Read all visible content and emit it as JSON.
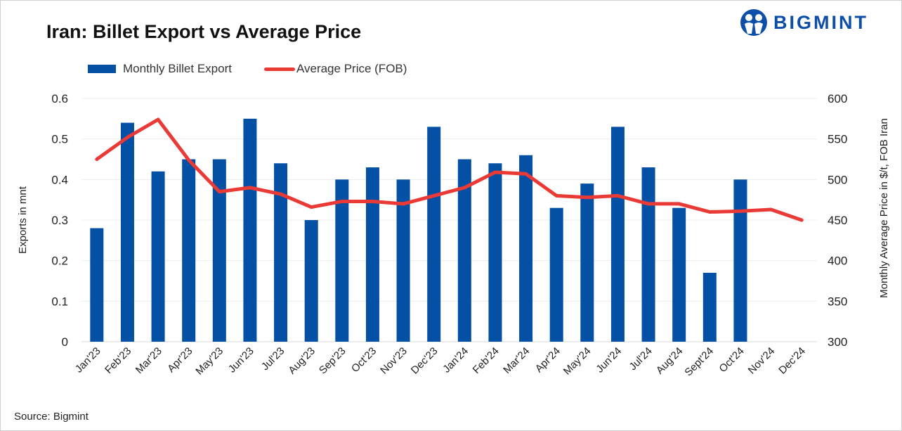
{
  "title": "Iran: Billet Export vs Average Price",
  "logo": {
    "text": "BIGMINT",
    "color": "#0d4fa8"
  },
  "source": "Source: Bigmint",
  "chart_data": {
    "type": "bar+line",
    "title": "Iran: Billet Export vs Average Price",
    "categories": [
      "Jan'23",
      "Feb'23",
      "Mar'23",
      "Apr'23",
      "May'23",
      "Jun'23",
      "Jul'23",
      "Aug'23",
      "Sep'23",
      "Oct'23",
      "Nov'23",
      "Dec'23",
      "Jan'24",
      "Feb'24",
      "Mar'24",
      "Apr'24",
      "May'24",
      "Jun'24",
      "Jul'24",
      "Aug'24",
      "Sept'24",
      "Oct'24",
      "Nov'24",
      "Dec'24"
    ],
    "series": [
      {
        "name": "Monthly Billet Export",
        "type": "bar",
        "axis": "left",
        "color": "#0450a4",
        "values": [
          0.28,
          0.54,
          0.42,
          0.45,
          0.45,
          0.55,
          0.44,
          0.3,
          0.4,
          0.43,
          0.4,
          0.53,
          0.45,
          0.44,
          0.46,
          0.33,
          0.39,
          0.53,
          0.43,
          0.33,
          0.17,
          0.4,
          null,
          null
        ]
      },
      {
        "name": "Average Price (FOB)",
        "type": "line",
        "axis": "right",
        "color": "#ea3a36",
        "values": [
          525,
          552,
          574,
          524,
          485,
          490,
          482,
          466,
          473,
          473,
          470,
          480,
          490,
          509,
          507,
          480,
          478,
          480,
          470,
          470,
          460,
          461,
          463,
          450
        ]
      }
    ],
    "ylabel": "Exports in mnt",
    "ylabel_right": "Monthly Average Price in $/t, FOB Iran",
    "ylim": [
      0,
      0.6
    ],
    "yticks": [
      "0",
      "0.1",
      "0.2",
      "0.3",
      "0.4",
      "0.5",
      "0.6"
    ],
    "ylim_right": [
      300,
      600
    ],
    "yticks_right": [
      "300",
      "350",
      "400",
      "450",
      "500",
      "550",
      "600"
    ],
    "grid": true,
    "legend": "top-left"
  }
}
